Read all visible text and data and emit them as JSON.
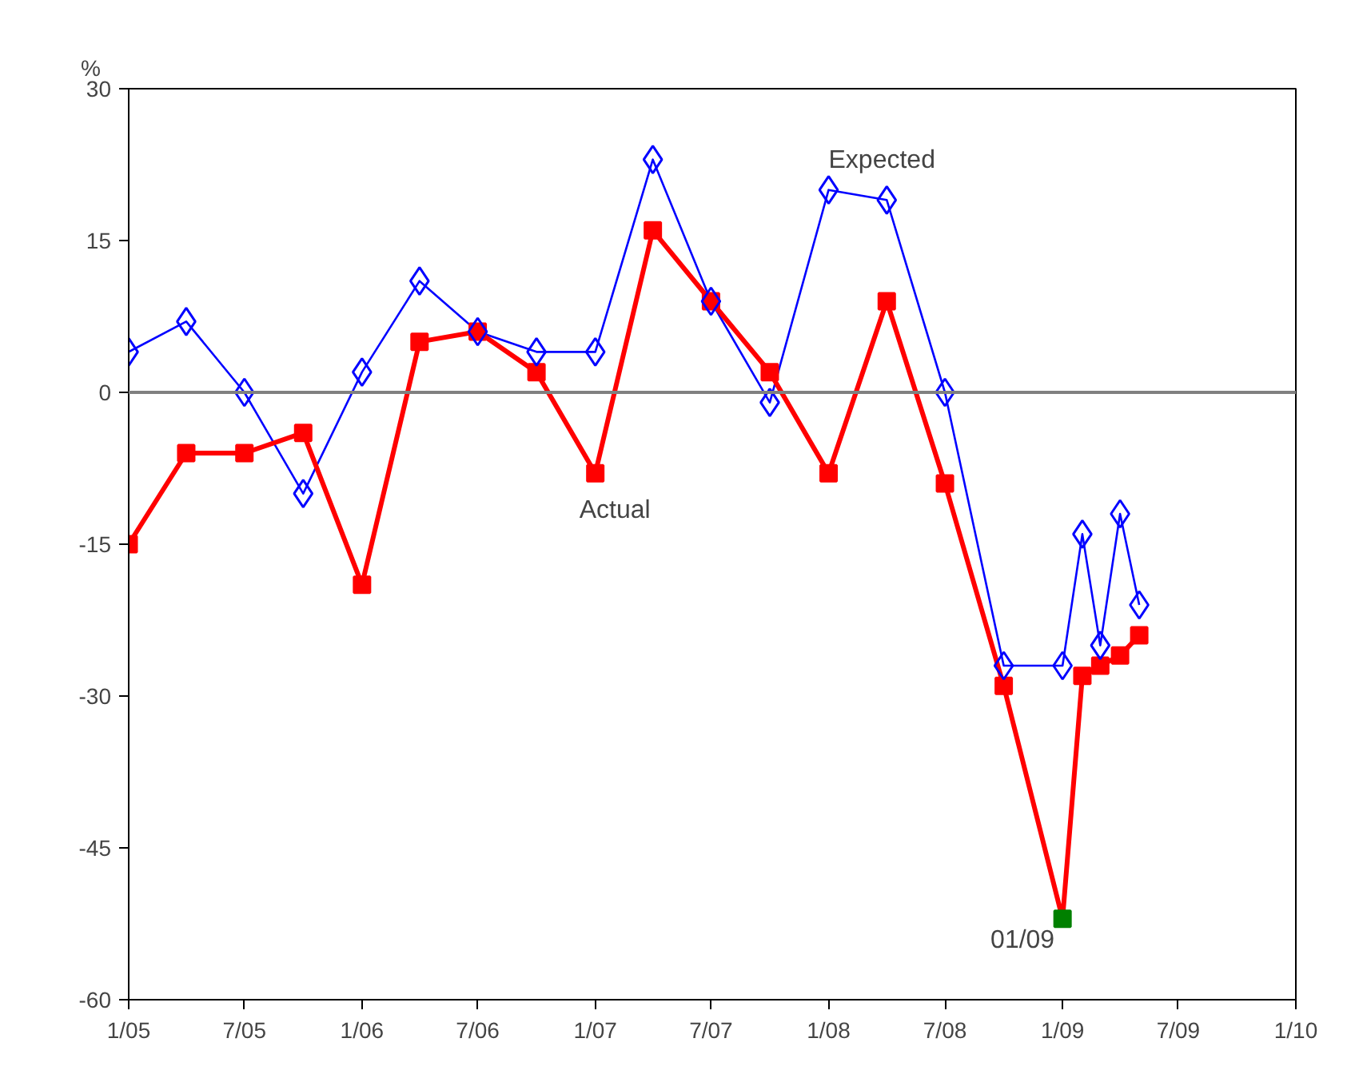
{
  "chart_data": {
    "type": "line",
    "ylabel": "%",
    "x": [
      "2005-01",
      "2005-04",
      "2005-07",
      "2005-10",
      "2006-01",
      "2006-04",
      "2006-07",
      "2006-10",
      "2007-01",
      "2007-04",
      "2007-07",
      "2007-10",
      "2008-01",
      "2008-04",
      "2008-07",
      "2008-10",
      "2009-01",
      "2009-02",
      "2009-03",
      "2009-04",
      "2009-05"
    ],
    "series": [
      {
        "color": "#0000ff",
        "marker": "diamond",
        "values": [
          4,
          7,
          0,
          -10,
          2,
          11,
          6,
          4,
          4,
          23,
          9,
          -1,
          20,
          19,
          0,
          -27,
          -27,
          -14,
          -25,
          -12,
          -21
        ]
      },
      {
        "color": "#ff0000",
        "marker": "square",
        "colors": [
          "#ff0000",
          "#ff0000",
          "#ff0000",
          "#ff0000",
          "#ff0000",
          "#ff0000",
          "#ff0000",
          "#ff0000",
          "#ff0000",
          "#ff0000",
          "#ff0000",
          "#ff0000",
          "#ff0000",
          "#ff0000",
          "#ff0000",
          "#ff0000",
          "#008000",
          "#ff0000",
          "#ff0000",
          "#ff0000",
          "#ff0000"
        ],
        "values": [
          -15,
          -6,
          -6,
          -4,
          -19,
          5,
          6,
          2,
          -8,
          16,
          9,
          2,
          -8,
          9,
          -9,
          -29,
          -52,
          -28,
          -27,
          -26,
          -24
        ]
      }
    ],
    "annotations": [
      {
        "text": "Expected",
        "x": "2008-01",
        "y": 20
      },
      {
        "text": "Actual",
        "x": "2007-01",
        "y": -8
      },
      {
        "text": "01/09",
        "x": "2009-01",
        "y": -52
      }
    ],
    "ref_lines": [
      {
        "axis": "y",
        "value": 0,
        "color": "#808080"
      }
    ],
    "xlim": [
      "2005-01",
      "2010-01"
    ],
    "xticks": [
      {
        "value": "2005-01",
        "label": "1/05"
      },
      {
        "value": "2005-07",
        "label": "7/05"
      },
      {
        "value": "2006-01",
        "label": "1/06"
      },
      {
        "value": "2006-07",
        "label": "7/06"
      },
      {
        "value": "2007-01",
        "label": "1/07"
      },
      {
        "value": "2007-07",
        "label": "7/07"
      },
      {
        "value": "2008-01",
        "label": "1/08"
      },
      {
        "value": "2008-07",
        "label": "7/08"
      },
      {
        "value": "2009-01",
        "label": "1/09"
      },
      {
        "value": "2009-07",
        "label": "7/09"
      },
      {
        "value": "2010-01",
        "label": "1/10"
      }
    ],
    "ylim": [
      -60,
      30
    ],
    "yticks": [
      -60,
      -45,
      -30,
      -15,
      0,
      15,
      30
    ],
    "grid": false
  }
}
